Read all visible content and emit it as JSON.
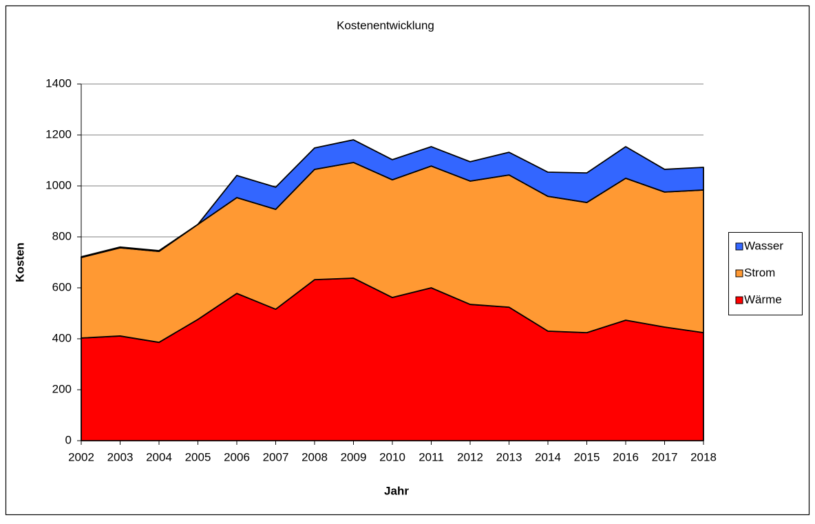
{
  "chart_data": {
    "type": "stacked_area",
    "title": "Kostenentwicklung",
    "x_label": "Jahr",
    "y_label": "Kosten",
    "categories": [
      "2002",
      "2003",
      "2004",
      "2005",
      "2006",
      "2007",
      "2008",
      "2009",
      "2010",
      "2011",
      "2012",
      "2013",
      "2014",
      "2015",
      "2016",
      "2017",
      "2018"
    ],
    "series": [
      {
        "name": "Wärme",
        "color": "#ff0000",
        "values": [
          403,
          411,
          386,
          476,
          578,
          516,
          632,
          638,
          562,
          600,
          535,
          524,
          430,
          424,
          473,
          446,
          424
        ]
      },
      {
        "name": "Strom",
        "color": "#ff9933",
        "values": [
          316,
          346,
          357,
          373,
          376,
          392,
          433,
          454,
          462,
          478,
          484,
          519,
          529,
          511,
          557,
          530,
          560
        ]
      },
      {
        "name": "Wasser",
        "color": "#3366ff",
        "values": [
          3,
          3,
          3,
          0,
          87,
          87,
          84,
          89,
          79,
          76,
          76,
          89,
          95,
          116,
          124,
          89,
          89
        ]
      }
    ],
    "ylim": [
      0,
      1400
    ],
    "yticks": [
      0,
      200,
      400,
      600,
      800,
      1000,
      1200,
      1400
    ],
    "grid": true,
    "legend": "right"
  }
}
